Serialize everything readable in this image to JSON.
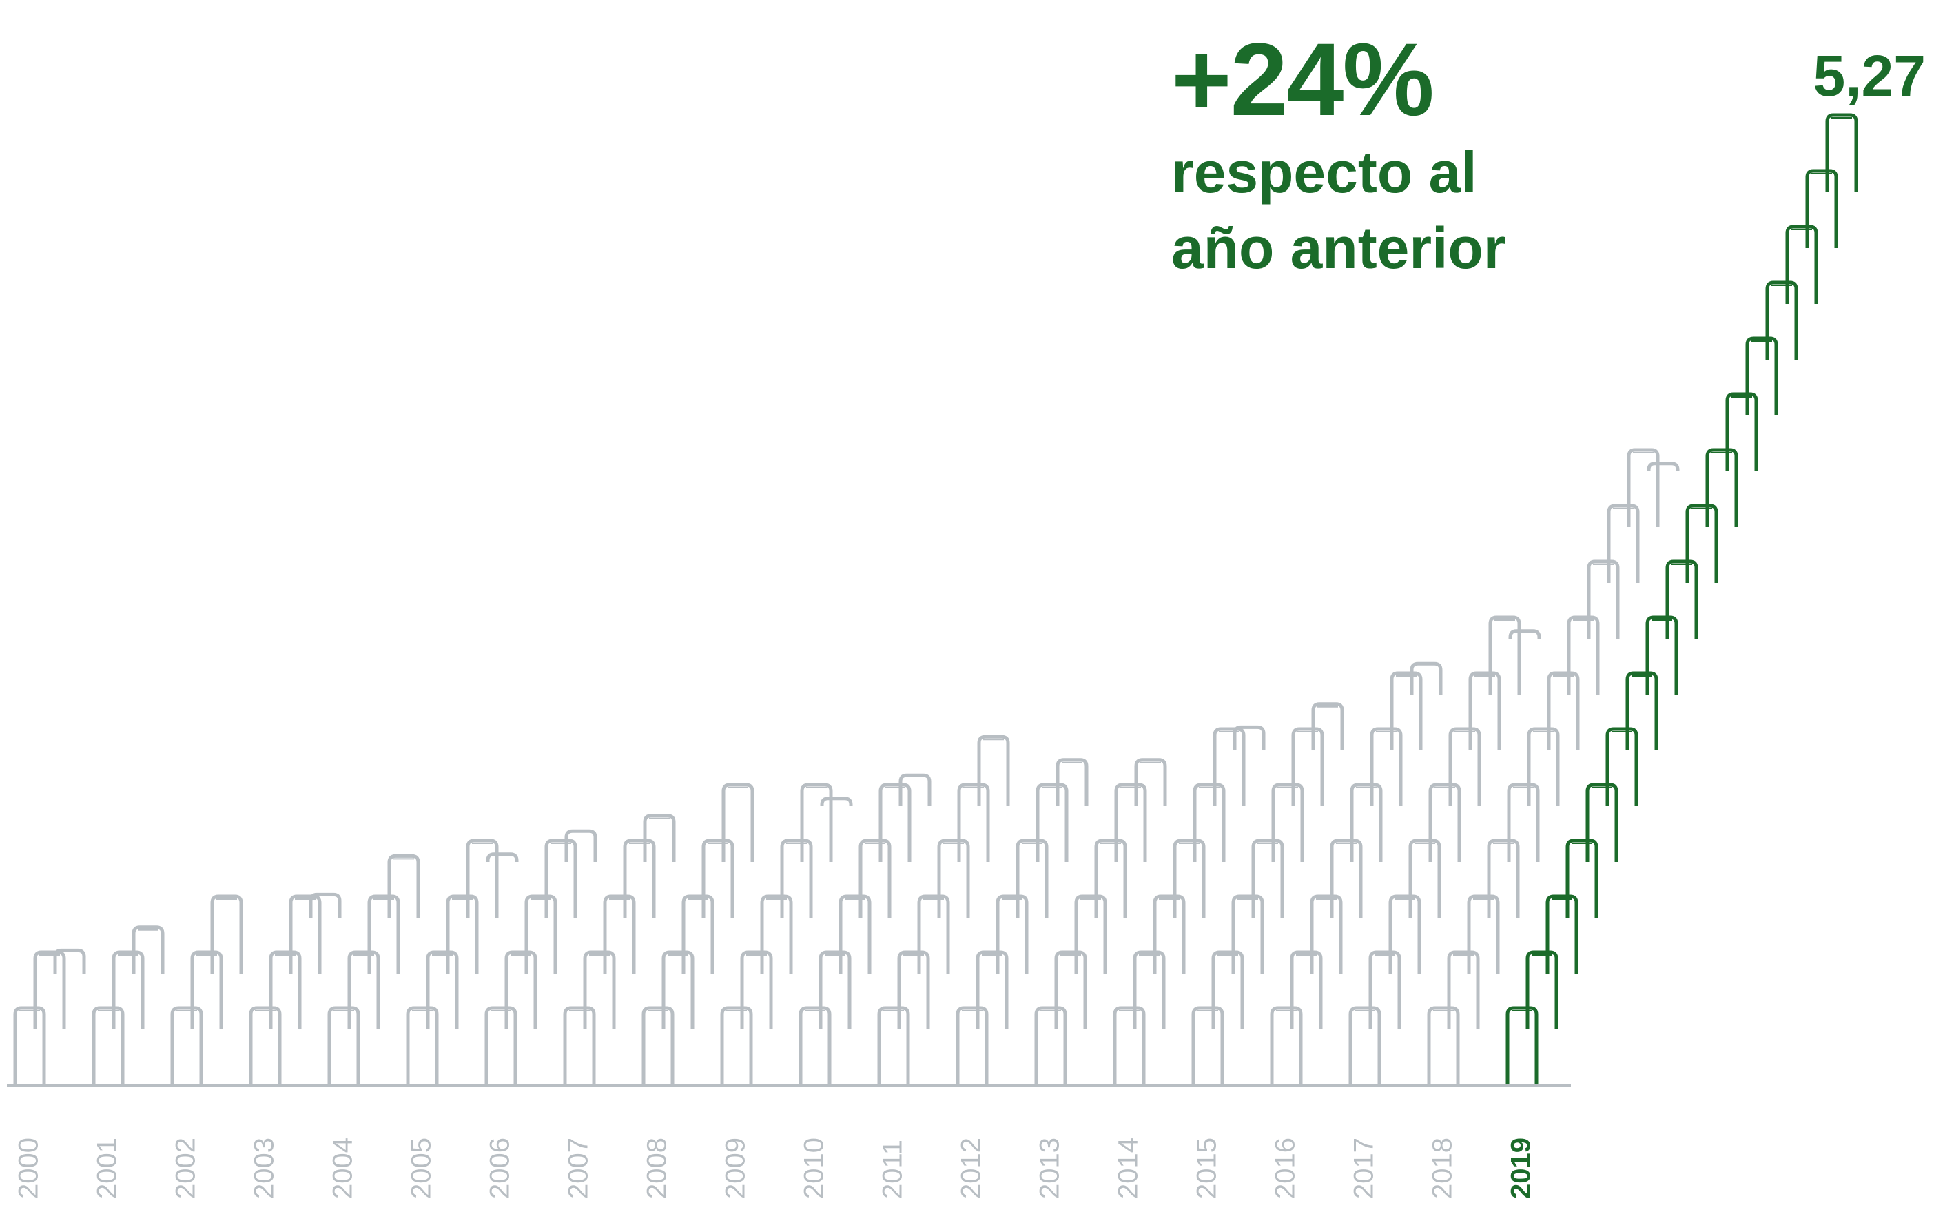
{
  "colors": {
    "accent": "#1b6b2a",
    "muted": "#b8bec3",
    "axis": "#b8bec3"
  },
  "headline": {
    "percent": "+24%",
    "line1": "respecto al",
    "line2": "año anterior"
  },
  "chart_data": {
    "type": "bar",
    "style": "stacked coin stacks per year",
    "categories": [
      "2000",
      "2001",
      "2002",
      "2003",
      "2004",
      "2005",
      "2006",
      "2007",
      "2008",
      "2009",
      "2010",
      "2011",
      "2012",
      "2013",
      "2014",
      "2015",
      "2016",
      "2017",
      "2018",
      "2019"
    ],
    "stack_counts": [
      2.3,
      2.6,
      3.0,
      3.3,
      3.8,
      4.1,
      4.4,
      4.6,
      5.0,
      5.1,
      5.4,
      5.9,
      5.6,
      5.6,
      6.3,
      6.6,
      7.4,
      8.1,
      11.1,
      17.0
    ],
    "values_label": {
      "2019": "5,27"
    },
    "highlight": "2019",
    "title": "",
    "xlabel": "",
    "ylabel": ""
  }
}
